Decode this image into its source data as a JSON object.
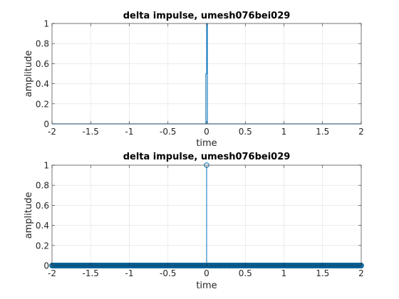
{
  "colors": {
    "background": "#ffffff",
    "axes_border": "#262626",
    "grid": "#dfdfdf",
    "series": "#0072bd",
    "series_dark": "#005f96"
  },
  "chart_data": [
    {
      "type": "line",
      "title": "delta impulse, umesh076bei029",
      "xlabel": "time",
      "ylabel": "amplitude",
      "xlim": [
        -2,
        2
      ],
      "ylim": [
        0,
        1
      ],
      "xticks": [
        -2,
        -1.5,
        -1,
        -0.5,
        0,
        0.5,
        1,
        1.5,
        2
      ],
      "yticks": [
        0,
        0.2,
        0.4,
        0.6,
        0.8,
        1
      ],
      "xtick_labels": [
        "-2",
        "-1.5",
        "-1",
        "-0.5",
        "0",
        "0.5",
        "1",
        "1.5",
        "2"
      ],
      "ytick_labels": [
        "0",
        "0.2",
        "0.4",
        "0.6",
        "0.8",
        "1"
      ],
      "grid": true,
      "series": [
        {
          "x": [
            -2,
            -0.01,
            -0.01,
            0,
            0,
            0.01,
            0.01,
            2
          ],
          "y": [
            0,
            0,
            0.5,
            0.5,
            1,
            1,
            0,
            0
          ]
        }
      ]
    },
    {
      "type": "stem",
      "title": "delta impulse, umesh076bei029",
      "xlabel": "time",
      "ylabel": "amplitude",
      "xlim": [
        -2,
        2
      ],
      "ylim": [
        0,
        1
      ],
      "xticks": [
        -2,
        -1.5,
        -1,
        -0.5,
        0,
        0.5,
        1,
        1.5,
        2
      ],
      "yticks": [
        0,
        0.2,
        0.4,
        0.6,
        0.8,
        1
      ],
      "xtick_labels": [
        "-2",
        "-1.5",
        "-1",
        "-0.5",
        "0",
        "0.5",
        "1",
        "1.5",
        "2"
      ],
      "ytick_labels": [
        "0",
        "0.2",
        "0.4",
        "0.6",
        "0.8",
        "1"
      ],
      "grid": true,
      "sample_step": 0.01,
      "impulse": {
        "x": 0,
        "y": 1
      },
      "baseline_value": 0
    }
  ]
}
